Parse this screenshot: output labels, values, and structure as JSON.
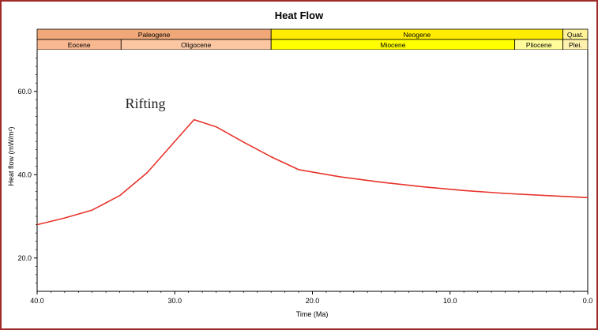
{
  "chart_data": {
    "type": "line",
    "title": "Heat Flow",
    "xlabel": "Time (Ma)",
    "ylabel": "Heat flow (mW/m²)",
    "xlim": [
      40,
      0
    ],
    "ylim": [
      12,
      70
    ],
    "x_ticks": [
      "40.0",
      "30.0",
      "20.0",
      "10.0",
      "0.0"
    ],
    "x_tick_values": [
      40,
      30,
      20,
      10,
      0
    ],
    "y_ticks": [
      "20.0",
      "40.0",
      "60.0"
    ],
    "y_tick_values": [
      20,
      40,
      60
    ],
    "annotations": [
      {
        "text": "Rifting",
        "x": 33.6,
        "y": 56
      }
    ],
    "periods": [
      {
        "label": "Paleogene",
        "start": 40,
        "end": 23,
        "color": "#f0a878"
      },
      {
        "label": "Neogene",
        "start": 23,
        "end": 1.8,
        "color": "#ffec00"
      },
      {
        "label": "Quat.",
        "start": 1.8,
        "end": 0,
        "color": "#fff39a"
      }
    ],
    "epochs": [
      {
        "label": "Eocene",
        "start": 40,
        "end": 33.9,
        "color": "#f8b890"
      },
      {
        "label": "Oligocene",
        "start": 33.9,
        "end": 23,
        "color": "#fbc7a3"
      },
      {
        "label": "Miocene",
        "start": 23,
        "end": 5.3,
        "color": "#ffff00"
      },
      {
        "label": "Pliocene",
        "start": 5.3,
        "end": 1.8,
        "color": "#fffc99"
      },
      {
        "label": "Plei.",
        "start": 1.8,
        "end": 0,
        "color": "#fff2ae"
      }
    ],
    "series": [
      {
        "color": "#e8332a",
        "x": [
          40,
          38,
          36,
          34,
          32,
          30,
          28.6,
          27,
          25,
          23,
          21,
          18,
          15,
          12,
          9,
          6,
          3,
          0
        ],
        "y": [
          28,
          29.6,
          31.5,
          35,
          40.5,
          48,
          53.2,
          51.5,
          47.8,
          44.3,
          41.2,
          39.5,
          38.2,
          37.1,
          36.2,
          35.5,
          35,
          34.5
        ]
      }
    ]
  }
}
